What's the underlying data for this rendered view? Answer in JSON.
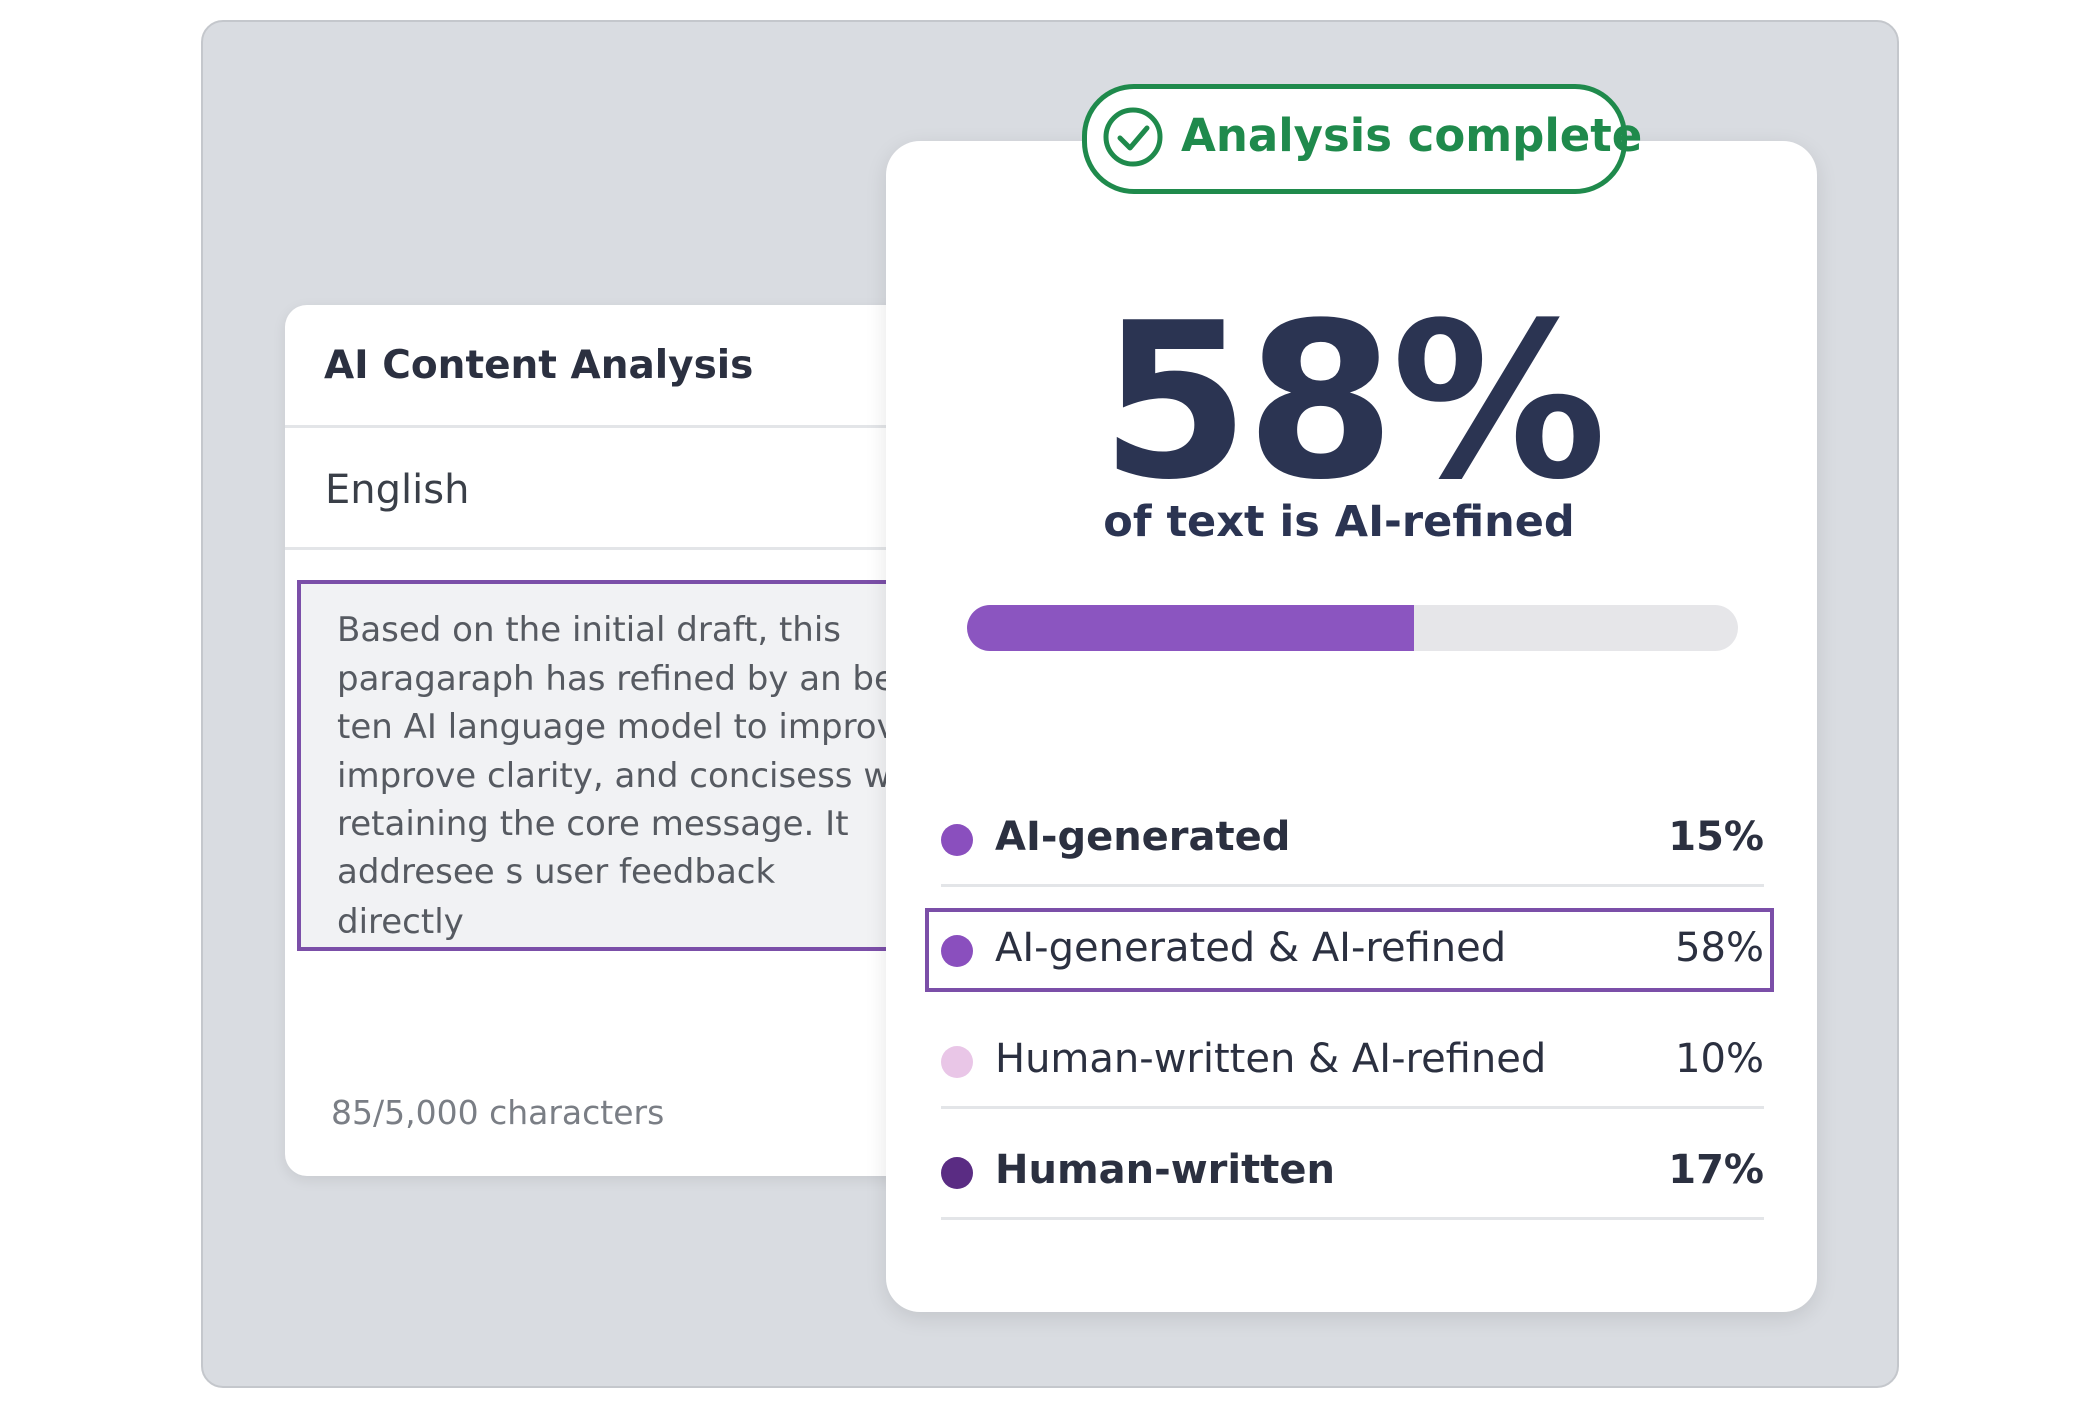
{
  "input_card": {
    "title": "AI Content Analysis",
    "language": "English",
    "text_lines": [
      "Based on the initial draft, this",
      "paragaraph has refined by an bee",
      "ten AI language model to improv",
      "improve clarity, and concisess whi",
      "retaining the core message. It",
      "addresee s user feedback",
      "directly"
    ],
    "char_count": "85/5,000 characters"
  },
  "result_card": {
    "badge": "Analysis complete",
    "score": {
      "value": 58,
      "label": "58%"
    },
    "caption": "of text is AI-refined",
    "breakdown": [
      {
        "label": "AI-generated",
        "value": "15%",
        "color": "#8a4fbe",
        "bold": true
      },
      {
        "label": "AI-generated & AI-refined",
        "value": "58%",
        "color": "#8a4fbe",
        "bold": false,
        "highlighted": true
      },
      {
        "label": "Human-written & AI-refined",
        "value": "10%",
        "color": "#e9c6e7",
        "bold": false
      },
      {
        "label": "Human-written",
        "value": "17%",
        "color": "#5a2c83",
        "bold": true
      }
    ]
  }
}
